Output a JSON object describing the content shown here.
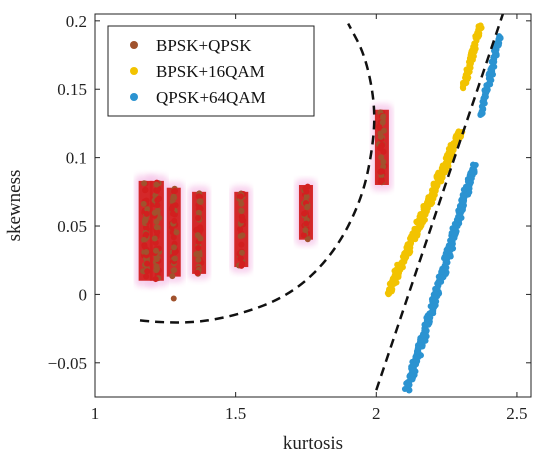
{
  "chart_data": {
    "type": "scatter",
    "title": "",
    "xlabel": "kurtosis",
    "ylabel": "skewness",
    "xlim": [
      1.0,
      2.55
    ],
    "ylim": [
      -0.075,
      0.205
    ],
    "xticks": [
      1,
      1.5,
      2,
      2.5
    ],
    "xtick_labels": [
      "1",
      "1.5",
      "2",
      "2.5"
    ],
    "yticks": [
      -0.05,
      0,
      0.05,
      0.1,
      0.15,
      0.2
    ],
    "ytick_labels": [
      "−0.05",
      "0",
      "0.05",
      "0.1",
      "0.15",
      "0.2"
    ],
    "grid": false,
    "legend_position": "top-left",
    "series": [
      {
        "name": "BPSK+QPSK",
        "color": "#a0522d",
        "highlight_color": "#d21f1f",
        "clusters": [
          {
            "x": 1.18,
            "y_range": [
              0.01,
              0.083
            ],
            "count": 60
          },
          {
            "x": 1.22,
            "y_range": [
              0.01,
              0.083
            ],
            "count": 50
          },
          {
            "x": 1.28,
            "y_range": [
              0.013,
              0.078
            ],
            "count": 45
          },
          {
            "x": 1.37,
            "y_range": [
              0.015,
              0.075
            ],
            "count": 45
          },
          {
            "x": 1.52,
            "y_range": [
              0.02,
              0.075
            ],
            "count": 40
          },
          {
            "x": 1.75,
            "y_range": [
              0.04,
              0.08
            ],
            "count": 35
          },
          {
            "x": 2.02,
            "y_range": [
              0.08,
              0.135
            ],
            "count": 40
          }
        ],
        "outliers": [
          {
            "x": 1.28,
            "y": -0.003
          }
        ]
      },
      {
        "name": "BPSK+16QAM",
        "color": "#f2c300",
        "segments": [
          {
            "from": [
              2.04,
              0.0
            ],
            "to": [
              2.3,
              0.12
            ],
            "count": 380,
            "spread": 0.016
          },
          {
            "from": [
              2.31,
              0.15
            ],
            "to": [
              2.37,
              0.198
            ],
            "count": 90,
            "spread": 0.012
          }
        ]
      },
      {
        "name": "QPSK+64QAM",
        "color": "#2b93d1",
        "segments": [
          {
            "from": [
              2.11,
              -0.07
            ],
            "to": [
              2.35,
              0.095
            ],
            "count": 400,
            "spread": 0.016
          },
          {
            "from": [
              2.37,
              0.13
            ],
            "to": [
              2.44,
              0.19
            ],
            "count": 90,
            "spread": 0.012
          }
        ]
      }
    ],
    "boundaries": [
      {
        "style": "dashed",
        "color": "#111111",
        "points": [
          [
            1.16,
            -0.019
          ],
          [
            1.3,
            -0.022
          ],
          [
            1.5,
            -0.016
          ],
          [
            1.7,
            0.0
          ],
          [
            1.85,
            0.03
          ],
          [
            1.95,
            0.07
          ],
          [
            1.99,
            0.11
          ],
          [
            1.995,
            0.14
          ],
          [
            1.96,
            0.175
          ],
          [
            1.9,
            0.198
          ]
        ]
      },
      {
        "style": "dashed",
        "color": "#111111",
        "points": [
          [
            2.0,
            -0.07
          ],
          [
            2.45,
            0.205
          ]
        ]
      }
    ]
  }
}
